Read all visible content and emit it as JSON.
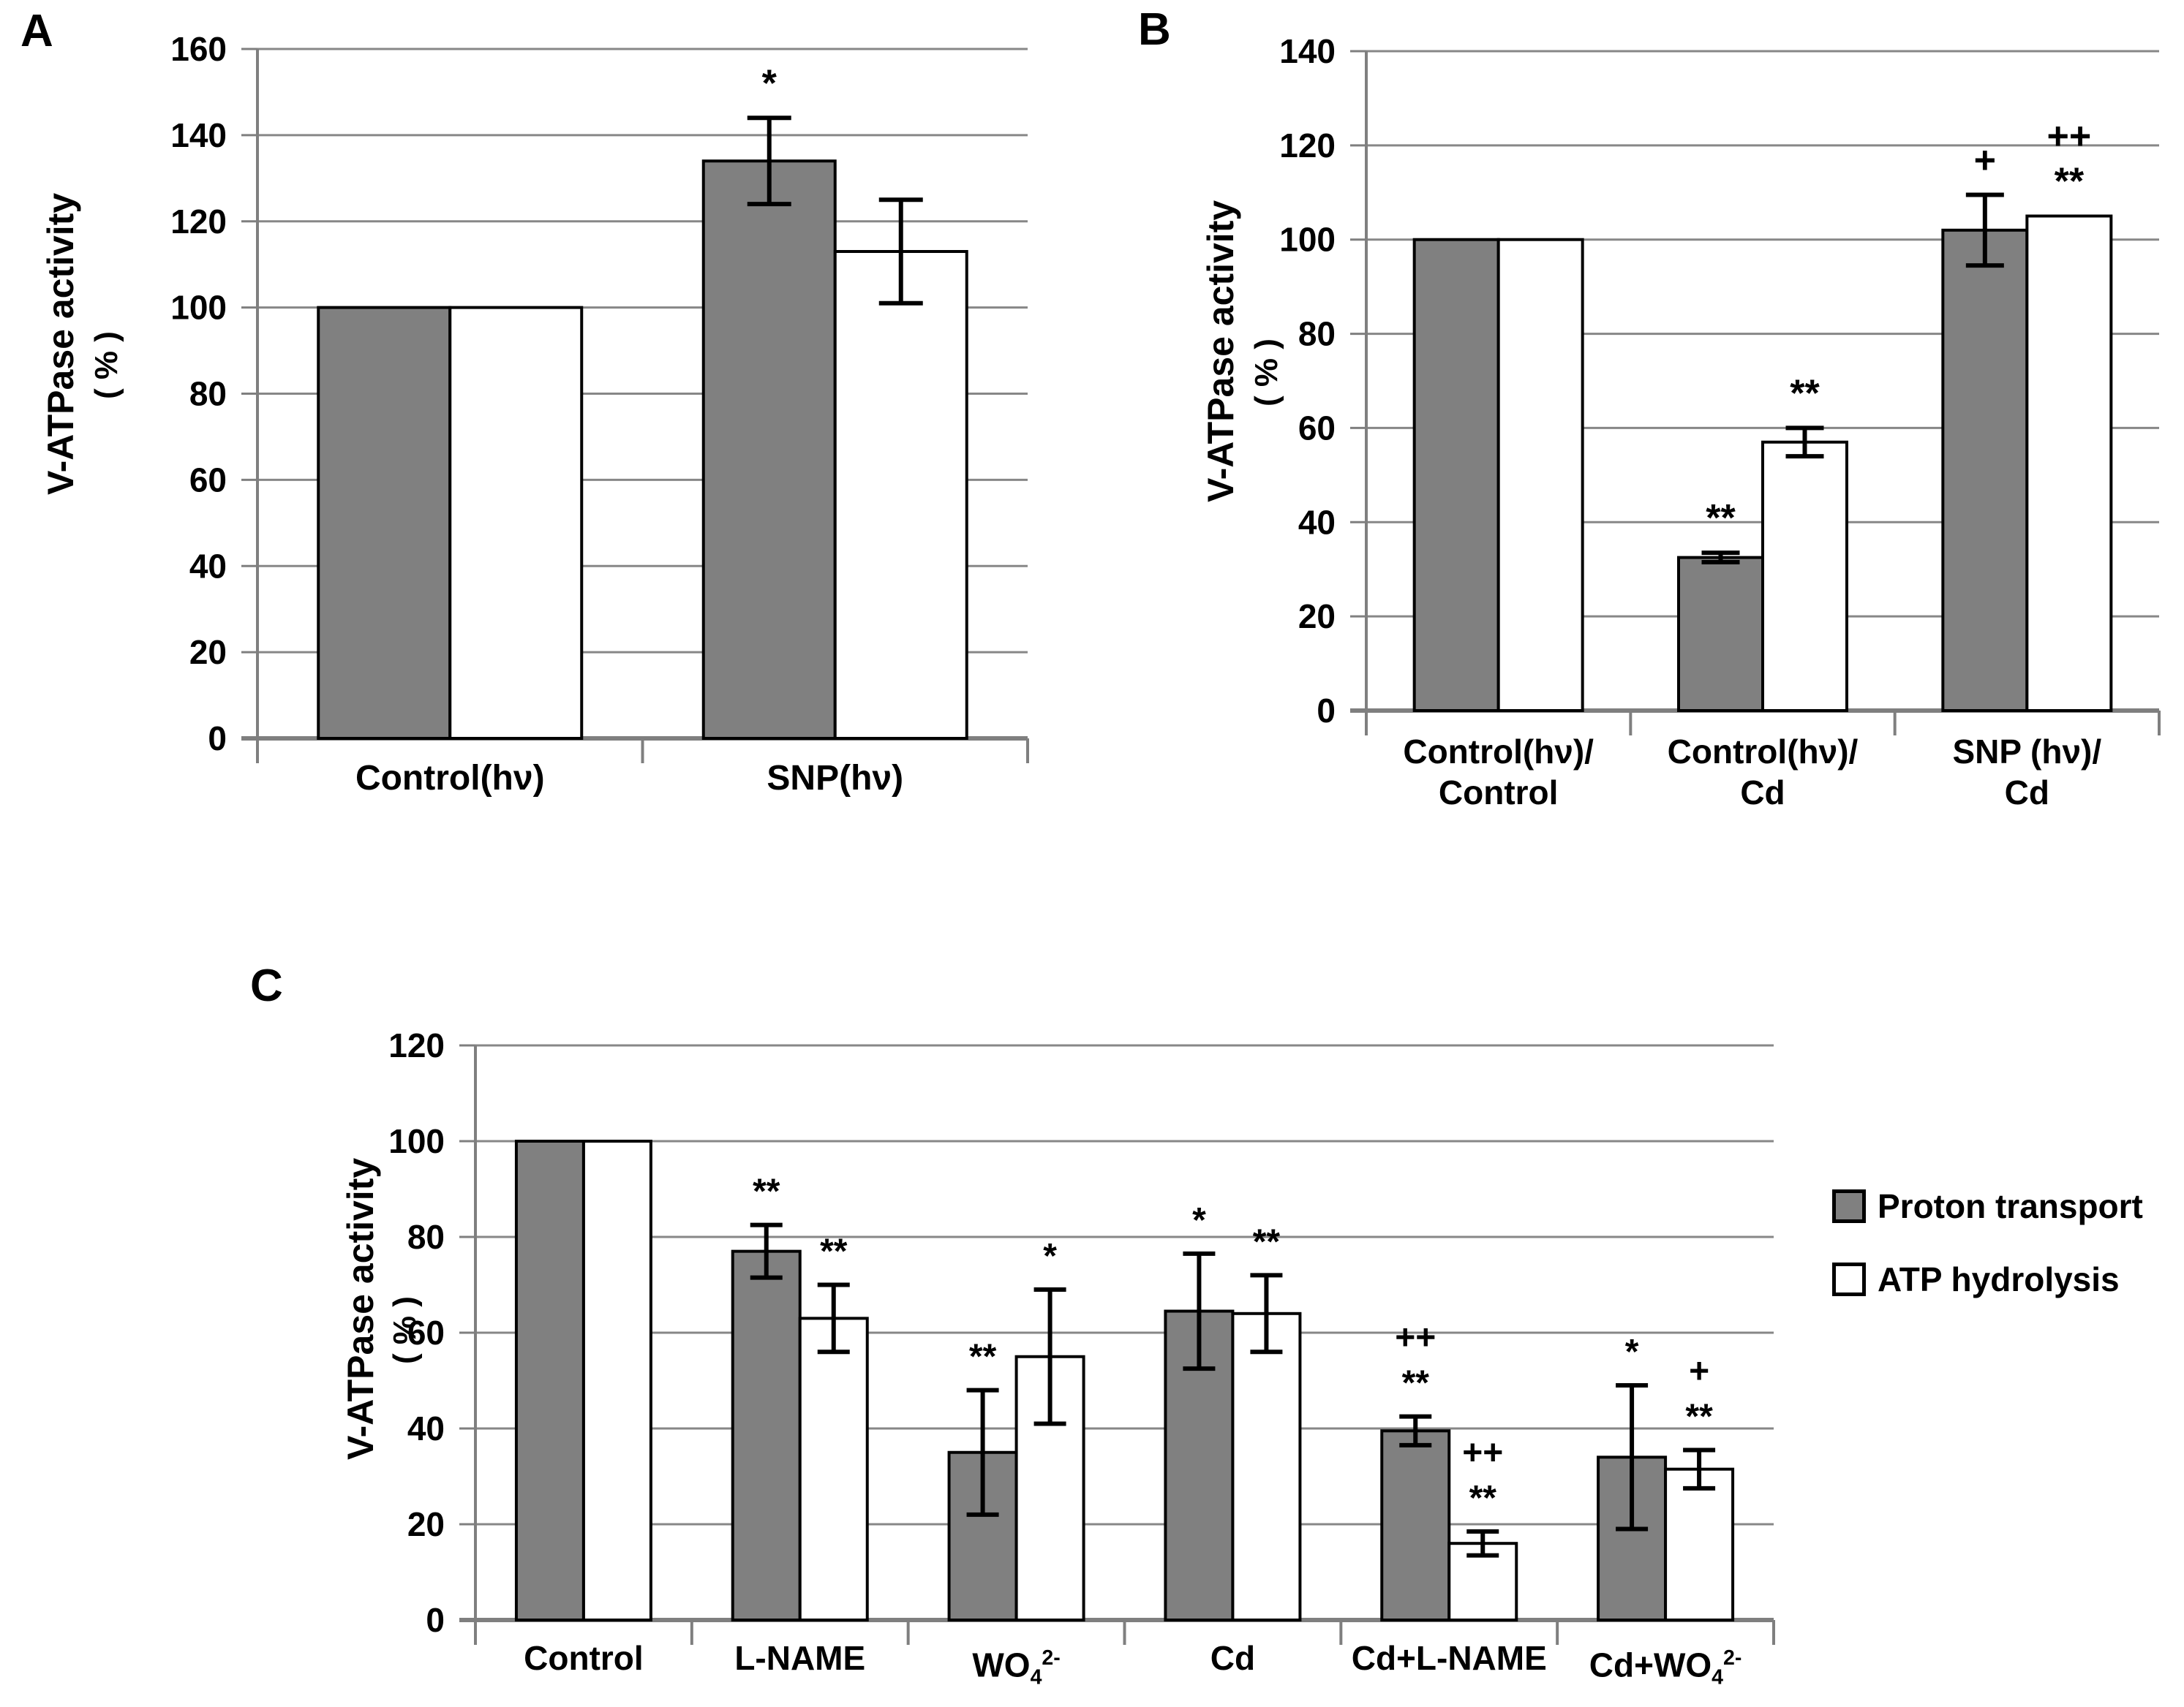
{
  "page": {
    "background": "#ffffff"
  },
  "colors": {
    "bar_gray": "#808080",
    "bar_white": "#ffffff",
    "bar_stroke": "#000000",
    "gridline": "#878787",
    "axis": "#7f7f7f",
    "error_bar": "#000000",
    "text": "#000000"
  },
  "legend": {
    "position": "right-of-chart-C",
    "items": [
      {
        "label": "Proton transport",
        "color": "#808080"
      },
      {
        "label": "ATP hydrolysis",
        "color": "#ffffff"
      }
    ]
  },
  "chart_data": [
    {
      "id": "A",
      "panel_label": "A",
      "type": "bar",
      "title": "",
      "xlabel": "",
      "ylabel": "V-ATPase activity",
      "ylabel_units": "( % )",
      "ylim": [
        0,
        160
      ],
      "ytick_step": 20,
      "grid": true,
      "categories": [
        "Control(hν)",
        "SNP(hν)"
      ],
      "series": [
        {
          "name": "Proton transport",
          "values": [
            100,
            134
          ],
          "errors": [
            0,
            10
          ],
          "markers": [
            [],
            [
              "*"
            ]
          ]
        },
        {
          "name": "ATP hydrolysis",
          "values": [
            100,
            113
          ],
          "errors": [
            0,
            12
          ],
          "markers": [
            [],
            []
          ]
        }
      ]
    },
    {
      "id": "B",
      "panel_label": "B",
      "type": "bar",
      "title": "",
      "xlabel": "",
      "ylabel": "V-ATPase activity",
      "ylabel_units": "( % )",
      "ylim": [
        0,
        140
      ],
      "ytick_step": 20,
      "grid": true,
      "categories": [
        "Control(hν)/\nControl",
        "Control(hν)/\nCd",
        "SNP (hν)/\nCd"
      ],
      "series": [
        {
          "name": "Proton transport",
          "values": [
            100,
            32.5,
            102
          ],
          "errors": [
            0,
            1,
            7.5
          ],
          "markers": [
            [],
            [
              "**"
            ],
            [
              "+"
            ]
          ]
        },
        {
          "name": "ATP hydrolysis",
          "values": [
            100,
            57,
            105
          ],
          "errors": [
            0,
            3,
            0
          ],
          "markers": [
            [],
            [
              "**"
            ],
            [
              "++",
              "**"
            ]
          ]
        }
      ]
    },
    {
      "id": "C",
      "panel_label": "C",
      "type": "bar",
      "title": "",
      "xlabel": "",
      "ylabel": "V-ATPase activity",
      "ylabel_units": "( % )",
      "ylim": [
        0,
        120
      ],
      "ytick_step": 20,
      "grid": true,
      "categories": [
        "Control",
        "L-NAME",
        "WO~4~^2-^",
        "Cd",
        "Cd+L-NAME",
        "Cd+WO~4~^2-^"
      ],
      "series": [
        {
          "name": "Proton transport",
          "values": [
            100,
            77,
            35,
            64.5,
            39.5,
            34
          ],
          "errors": [
            0,
            5.5,
            13,
            12,
            3,
            15
          ],
          "markers": [
            [],
            [
              "**"
            ],
            [
              "**"
            ],
            [
              "*"
            ],
            [
              "++",
              "**"
            ],
            [
              "*"
            ]
          ]
        },
        {
          "name": "ATP hydrolysis",
          "values": [
            100,
            63,
            55,
            64,
            16,
            31.5
          ],
          "errors": [
            0,
            7,
            14,
            8,
            2.5,
            4
          ],
          "markers": [
            [],
            [
              "**"
            ],
            [
              "*"
            ],
            [
              "**"
            ],
            [
              "++",
              "**"
            ],
            [
              "+",
              "**"
            ]
          ]
        }
      ]
    }
  ]
}
